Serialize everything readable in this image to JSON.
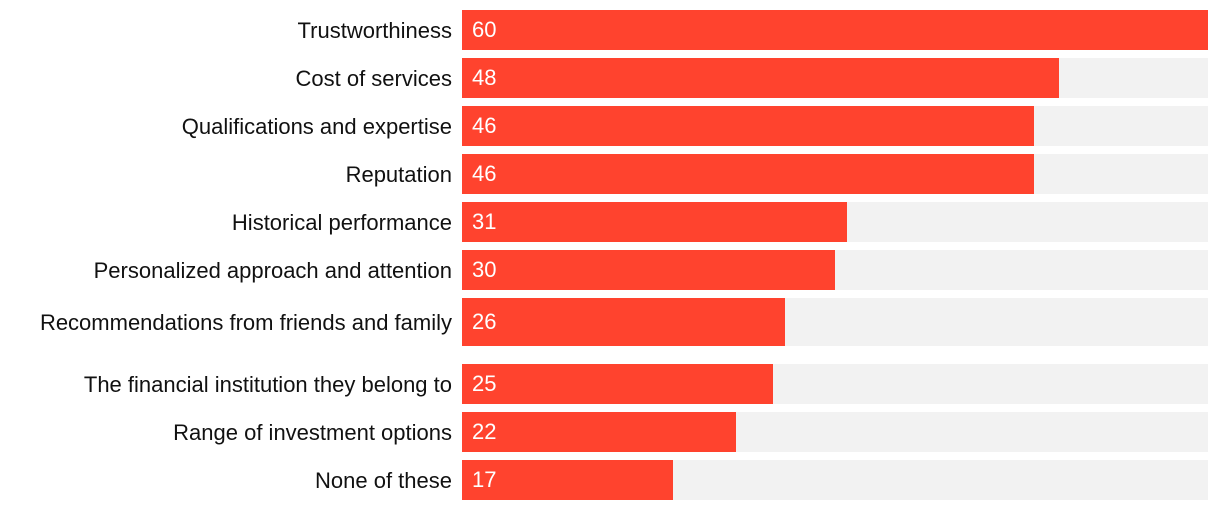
{
  "chart_data": {
    "type": "bar",
    "orientation": "horizontal",
    "categories": [
      "Trustworthiness",
      "Cost of services",
      "Qualifications and expertise",
      "Reputation",
      "Historical performance",
      "Personalized approach and attention",
      "Recommendations from friends and family",
      "The financial institution they belong to",
      "Range of investment options",
      "None of these"
    ],
    "values": [
      60,
      48,
      46,
      46,
      31,
      30,
      26,
      25,
      22,
      17
    ],
    "xlim": [
      0,
      60
    ],
    "title": "",
    "xlabel": "",
    "ylabel": ""
  },
  "colors": {
    "bar": "#ff432e",
    "track": "#f2f2f2",
    "label_text": "#111111",
    "value_text": "#ffffff"
  }
}
